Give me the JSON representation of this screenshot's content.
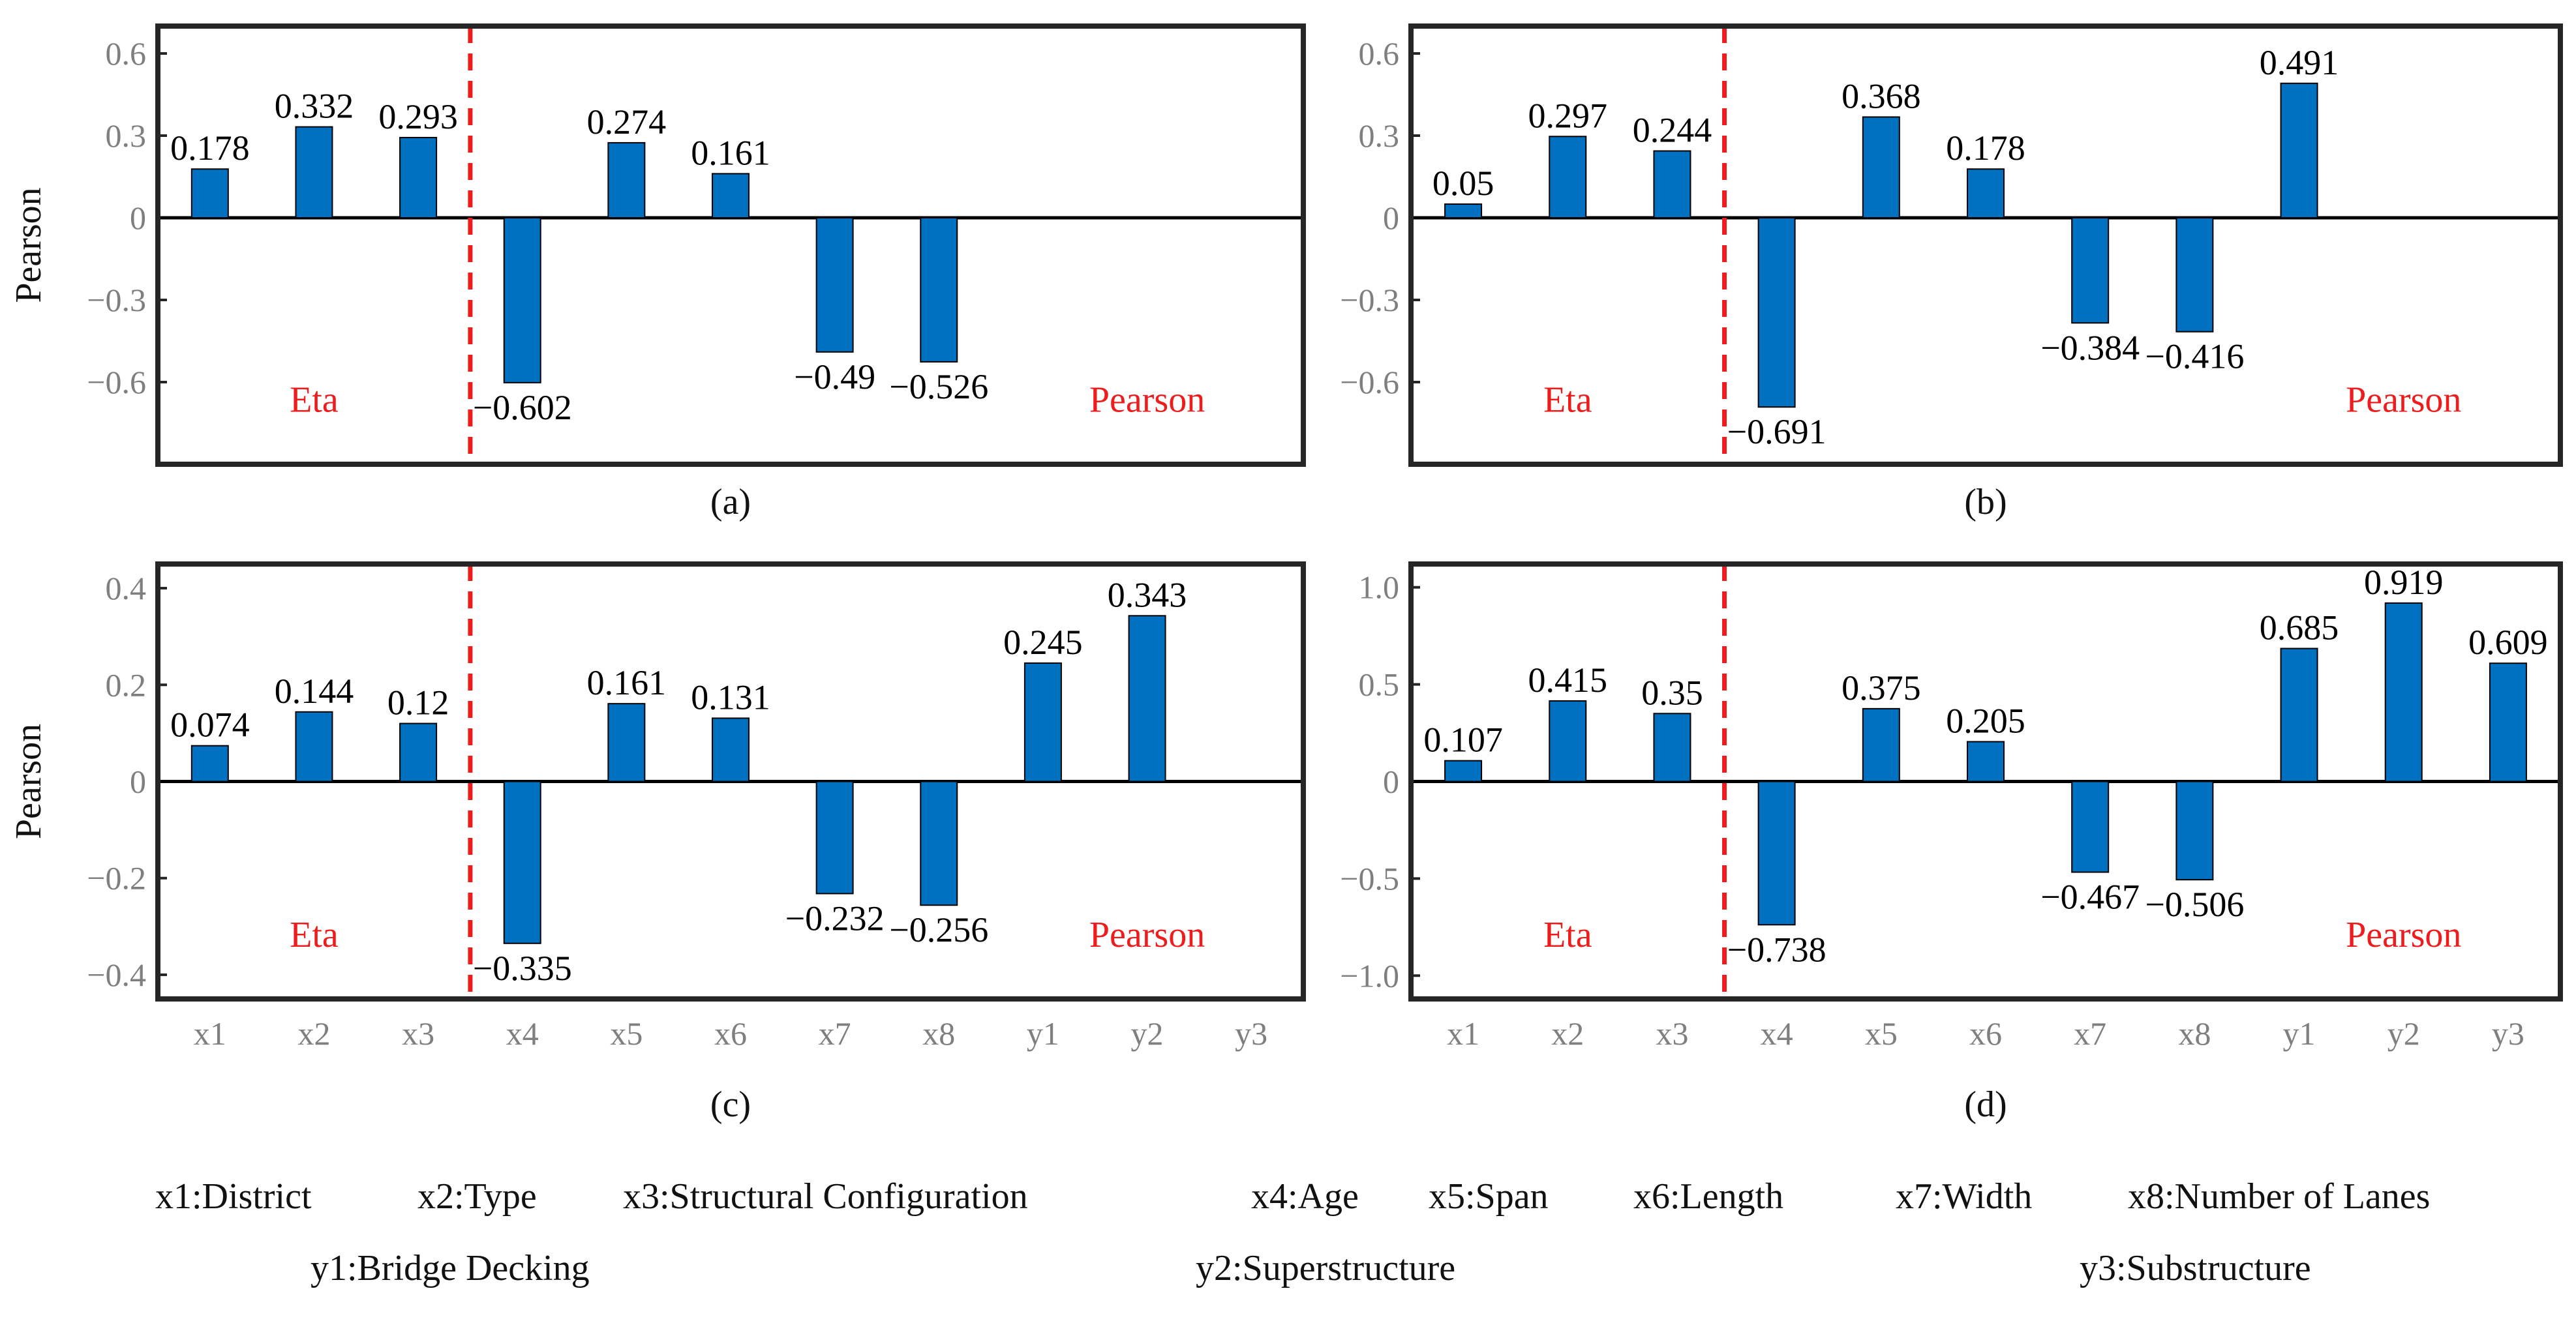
{
  "figure": {
    "categories": [
      "x1",
      "x2",
      "x3",
      "x4",
      "x5",
      "x6",
      "x7",
      "x8",
      "y1",
      "y2",
      "y3"
    ],
    "colors": {
      "bar": "#0070C0",
      "divider": "#EE1C1C",
      "region_label": "#EE1C1C",
      "axis": "#262626",
      "tick_label": "#7F7F7F",
      "value_label": "#000000"
    },
    "legend": {
      "row1": [
        "x1:District",
        "x2:Type",
        "x3:Structural Configuration",
        "x4:Age",
        "x5:Span",
        "x6:Length",
        "x7:Width",
        "x8:Number of Lanes"
      ],
      "row2": [
        "y1:Bridge Decking",
        "y2:Superstructure",
        "y3:Substructure"
      ]
    }
  },
  "chart_data": [
    {
      "panel": "(a)",
      "type": "bar",
      "ylabel": "Pearson",
      "categories": [
        "x1",
        "x2",
        "x3",
        "x4",
        "x5",
        "x6",
        "x7",
        "x8",
        "y1",
        "y2",
        "y3"
      ],
      "values": [
        0.178,
        0.332,
        0.293,
        -0.602,
        0.274,
        0.161,
        -0.49,
        -0.526,
        null,
        null,
        null
      ],
      "value_labels": [
        "0.178",
        "0.332",
        "0.293",
        "−0.602",
        "0.274",
        "0.161",
        "−0.49",
        "−0.526",
        "",
        "",
        ""
      ],
      "ylim": [
        -0.9,
        0.7
      ],
      "yticks": [
        0.6,
        0.3,
        0,
        -0.3,
        -0.6
      ],
      "ytick_labels": [
        "0.6",
        "0.3",
        "0",
        "−0.3",
        "−0.6"
      ],
      "show_xticks": false,
      "divider_between": [
        "x3",
        "x4"
      ],
      "region_labels": {
        "left": "Eta",
        "right": "Pearson"
      }
    },
    {
      "panel": "(b)",
      "type": "bar",
      "ylabel": "",
      "categories": [
        "x1",
        "x2",
        "x3",
        "x4",
        "x5",
        "x6",
        "x7",
        "x8",
        "y1",
        "y2",
        "y3"
      ],
      "values": [
        0.05,
        0.297,
        0.244,
        -0.691,
        0.368,
        0.178,
        -0.384,
        -0.416,
        0.491,
        null,
        null
      ],
      "value_labels": [
        "0.05",
        "0.297",
        "0.244",
        "−0.691",
        "0.368",
        "0.178",
        "−0.384",
        "−0.416",
        "0.491",
        "",
        ""
      ],
      "ylim": [
        -0.9,
        0.7
      ],
      "yticks": [
        0.6,
        0.3,
        0,
        -0.3,
        -0.6
      ],
      "ytick_labels": [
        "0.6",
        "0.3",
        "0",
        "−0.3",
        "−0.6"
      ],
      "show_xticks": false,
      "divider_between": [
        "x3",
        "x4"
      ],
      "region_labels": {
        "left": "Eta",
        "right": "Pearson"
      }
    },
    {
      "panel": "(c)",
      "type": "bar",
      "ylabel": "Pearson",
      "categories": [
        "x1",
        "x2",
        "x3",
        "x4",
        "x5",
        "x6",
        "x7",
        "x8",
        "y1",
        "y2",
        "y3"
      ],
      "values": [
        0.074,
        0.144,
        0.12,
        -0.335,
        0.161,
        0.131,
        -0.232,
        -0.256,
        0.245,
        0.343,
        null
      ],
      "value_labels": [
        "0.074",
        "0.144",
        "0.12",
        "−0.335",
        "0.161",
        "0.131",
        "−0.232",
        "−0.256",
        "0.245",
        "0.343",
        ""
      ],
      "ylim": [
        -0.45,
        0.45
      ],
      "yticks": [
        0.4,
        0.2,
        0,
        -0.2,
        -0.4
      ],
      "ytick_labels": [
        "0.4",
        "0.2",
        "0",
        "−0.2",
        "−0.4"
      ],
      "show_xticks": true,
      "divider_between": [
        "x3",
        "x4"
      ],
      "region_labels": {
        "left": "Eta",
        "right": "Pearson"
      }
    },
    {
      "panel": "(d)",
      "type": "bar",
      "ylabel": "",
      "categories": [
        "x1",
        "x2",
        "x3",
        "x4",
        "x5",
        "x6",
        "x7",
        "x8",
        "y1",
        "y2",
        "y3"
      ],
      "values": [
        0.107,
        0.415,
        0.35,
        -0.738,
        0.375,
        0.205,
        -0.467,
        -0.506,
        0.685,
        0.919,
        0.609
      ],
      "value_labels": [
        "0.107",
        "0.415",
        "0.35",
        "−0.738",
        "0.375",
        "0.205",
        "−0.467",
        "−0.506",
        "0.685",
        "0.919",
        "0.609"
      ],
      "ylim": [
        -1.12,
        1.12
      ],
      "yticks": [
        1.0,
        0.5,
        0,
        -0.5,
        -1.0
      ],
      "ytick_labels": [
        "1.0",
        "0.5",
        "0",
        "−0.5",
        "−1.0"
      ],
      "show_xticks": true,
      "divider_between": [
        "x3",
        "x4"
      ],
      "region_labels": {
        "left": "Eta",
        "right": "Pearson"
      }
    }
  ]
}
